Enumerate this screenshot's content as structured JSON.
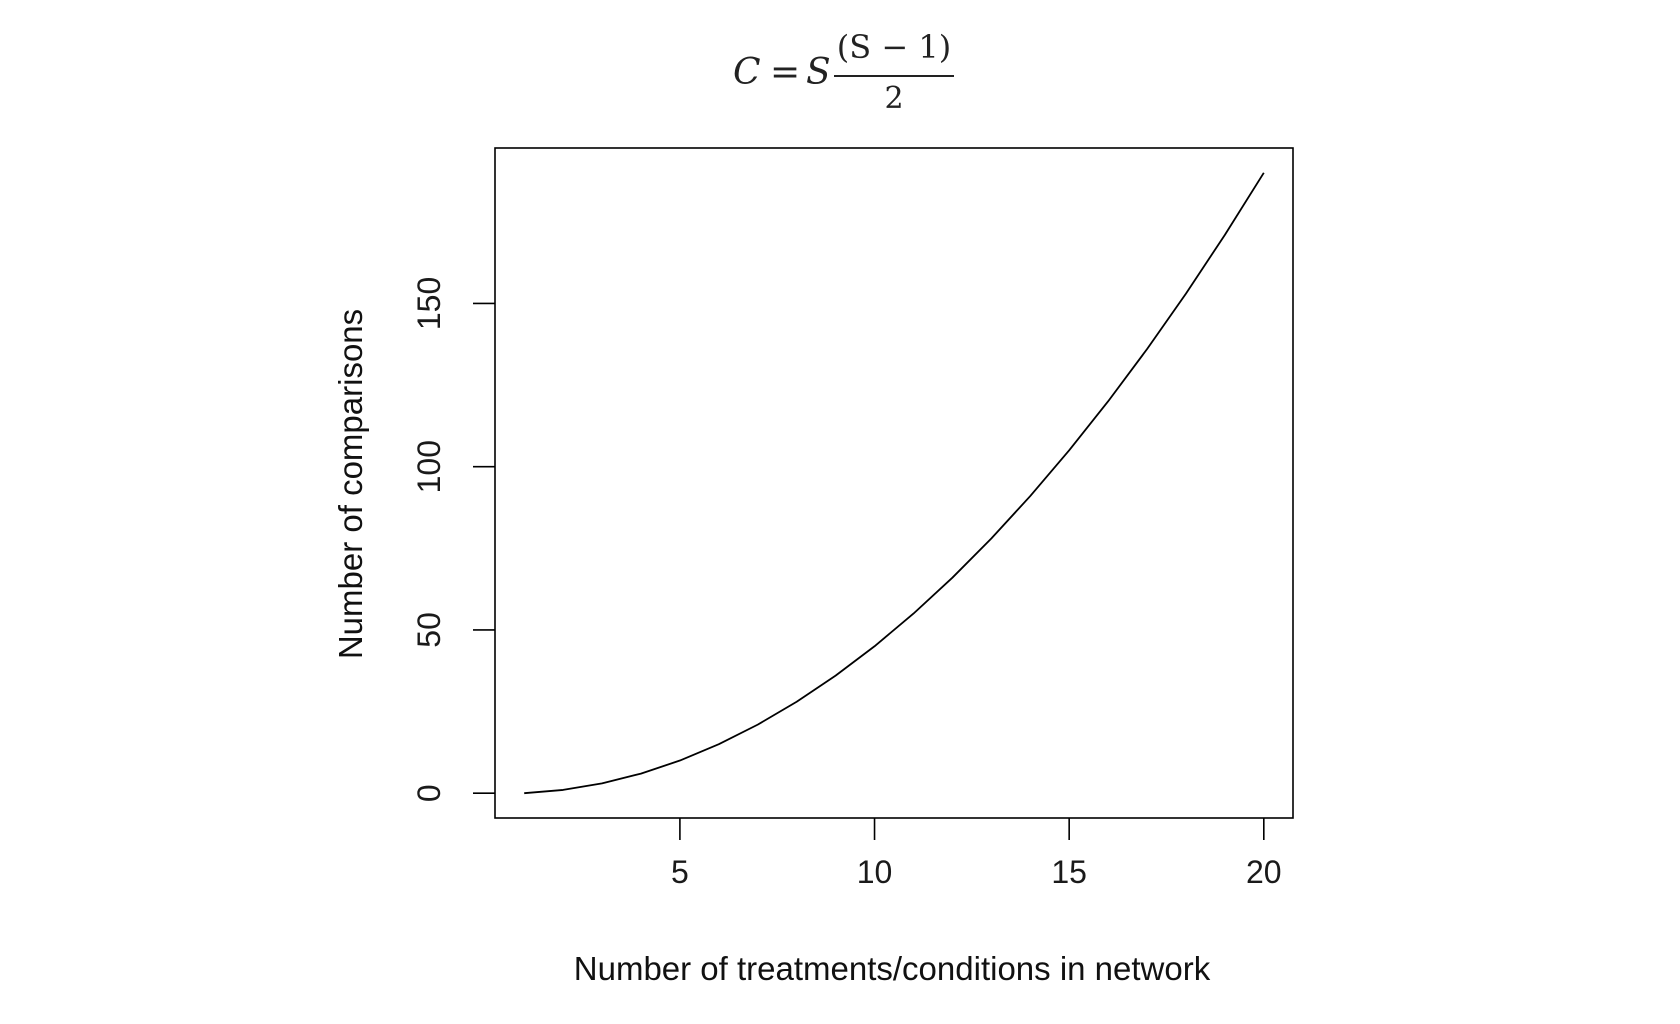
{
  "formula": {
    "lhs": "C",
    "equals": "=",
    "factor": "S",
    "numerator": "(S − 1)",
    "denominator": "2"
  },
  "chart_data": {
    "type": "line",
    "title": "",
    "xlabel": "Number of treatments/conditions in network",
    "ylabel": "Number of comparisons",
    "xlim": [
      0.25,
      20.75
    ],
    "ylim": [
      -7.6,
      197.6
    ],
    "xticks": [
      5,
      10,
      15,
      20
    ],
    "yticks": [
      0,
      50,
      100,
      150
    ],
    "grid": false,
    "legend": "none",
    "line_color": "#000000",
    "series": [
      {
        "x": [
          1,
          2,
          3,
          4,
          5,
          6,
          7,
          8,
          9,
          10,
          11,
          12,
          13,
          14,
          15,
          16,
          17,
          18,
          19,
          20
        ],
        "y": [
          0,
          1,
          3,
          6,
          10,
          15,
          21,
          28,
          36,
          45,
          55,
          66,
          78,
          91,
          105,
          120,
          136,
          153,
          171,
          190
        ]
      }
    ]
  }
}
